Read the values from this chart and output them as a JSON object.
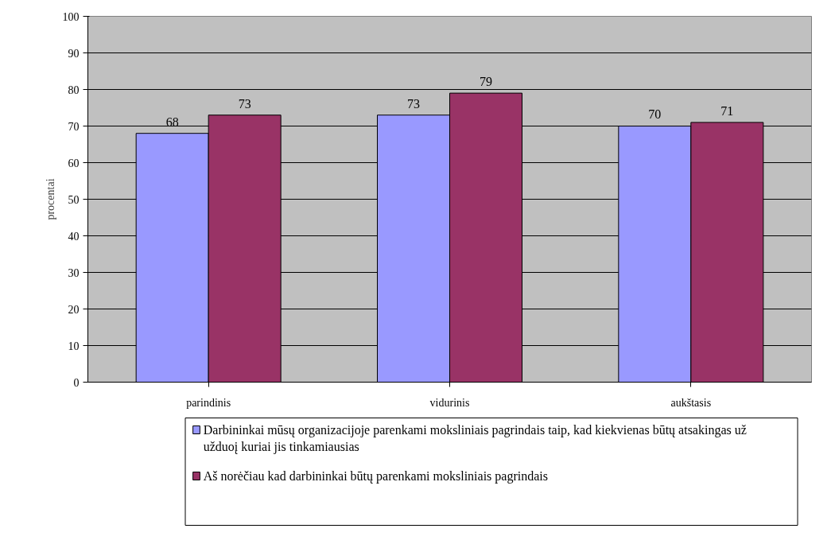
{
  "chart_data": {
    "type": "bar",
    "ylabel": "procentai",
    "categories": [
      "parindinis",
      "vidurinis",
      "aukštasis"
    ],
    "series": [
      {
        "name": "Darbininkai mūsų organizacijoje parenkami moksliniais pagrindais taip, kad kiekvienas būtų atsakingas už užduoį kuriai jis tinkamiausias",
        "color": "#9999ff",
        "values": [
          68,
          73,
          70
        ]
      },
      {
        "name": "Aš norėčiau kad darbininkai būtų parenkami moksliniais pagrindais",
        "color": "#993366",
        "values": [
          73,
          79,
          71
        ]
      }
    ],
    "ylim": [
      0,
      100
    ],
    "yticks": [
      0,
      10,
      20,
      30,
      40,
      50,
      60,
      70,
      80,
      90,
      100
    ],
    "grid": "y",
    "legend": "bottom",
    "data_labels": true
  }
}
